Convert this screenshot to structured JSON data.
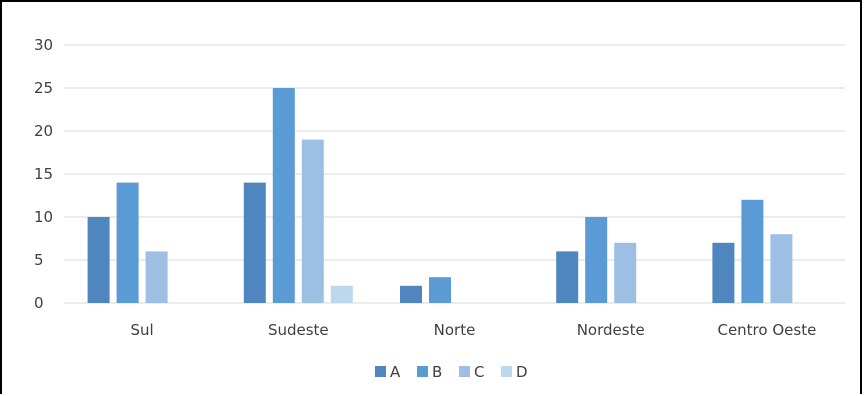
{
  "chart_data": {
    "type": "bar",
    "categories": [
      "Sul",
      "Sudeste",
      "Norte",
      "Nordeste",
      "Centro Oeste"
    ],
    "series": [
      {
        "name": "A",
        "color": "#4f86bf",
        "values": [
          10,
          14,
          2,
          6,
          7
        ]
      },
      {
        "name": "B",
        "color": "#5b9bd5",
        "values": [
          14,
          25,
          3,
          10,
          12
        ]
      },
      {
        "name": "C",
        "color": "#9dbfe3",
        "values": [
          6,
          19,
          0,
          7,
          8
        ]
      },
      {
        "name": "D",
        "color": "#bdd7ee",
        "values": [
          0,
          2,
          0,
          0,
          0
        ]
      }
    ],
    "ylim": [
      0,
      30
    ],
    "yticks": [
      "0",
      "5",
      "10",
      "15",
      "20",
      "25",
      "30"
    ],
    "grid": true,
    "legend_position": "bottom"
  }
}
